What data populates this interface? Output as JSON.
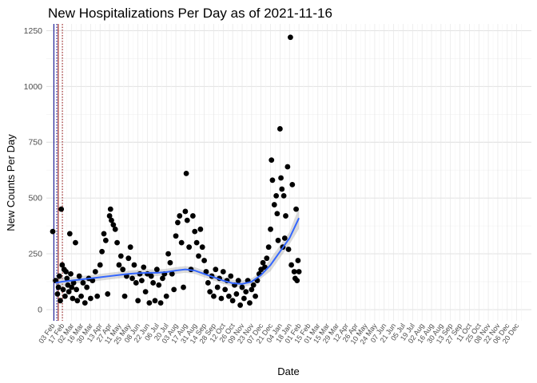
{
  "chart_data": {
    "type": "scatter",
    "title": "New Hospitalizations Per Day as of 2021-11-16",
    "xlabel": "Date",
    "ylabel": "New Counts Per Day",
    "ylim": [
      -50,
      1280
    ],
    "yticks": [
      0,
      250,
      500,
      750,
      1000,
      1250
    ],
    "grid": true,
    "x_tick_labels": [
      "03 Feb",
      "17 Feb",
      "02 Mar",
      "16 Mar",
      "30 Mar",
      "13 Apr",
      "27 Apr",
      "11 May",
      "25 May",
      "08 Jun",
      "22 Jun",
      "06 Jul",
      "20 Jul",
      "03 Aug",
      "17 Aug",
      "31 Aug",
      "14 Sep",
      "28 Sep",
      "12 Oct",
      "26 Oct",
      "09 Nov",
      "23 Nov",
      "07 Dec",
      "21 Dec",
      "04 Jan",
      "18 Jan",
      "01 Feb",
      "15 Feb",
      "01 Mar",
      "15 Mar",
      "29 Mar",
      "12 Apr",
      "26 Apr",
      "10 May",
      "24 May",
      "07 Jun",
      "21 Jun",
      "05 Jul",
      "19 Jul",
      "02 Aug",
      "16 Aug",
      "30 Aug",
      "13 Sep",
      "27 Sep",
      "11 Oct",
      "25 Oct",
      "08 Nov",
      "22 Nov",
      "06 Dec",
      "20 Dec"
    ],
    "reference_lines": [
      {
        "x": 0.12,
        "color": "#00008b",
        "style": "solid"
      },
      {
        "x": 0.42,
        "color": "#00008b",
        "style": "dotted"
      },
      {
        "x": 0.58,
        "color": "#8b0000",
        "style": "solid"
      },
      {
        "x": 1.02,
        "color": "#8b0000",
        "style": "dotted"
      }
    ],
    "series": [
      {
        "type": "scatter",
        "color": "#000000",
        "points": [
          [
            0.0,
            350
          ],
          [
            0.3,
            130
          ],
          [
            0.5,
            70
          ],
          [
            0.6,
            100
          ],
          [
            0.7,
            150
          ],
          [
            0.8,
            40
          ],
          [
            0.9,
            450
          ],
          [
            1.0,
            200
          ],
          [
            1.1,
            90
          ],
          [
            1.2,
            180
          ],
          [
            1.3,
            60
          ],
          [
            1.4,
            170
          ],
          [
            1.5,
            140
          ],
          [
            1.6,
            110
          ],
          [
            1.7,
            80
          ],
          [
            1.8,
            340
          ],
          [
            1.9,
            160
          ],
          [
            2.0,
            100
          ],
          [
            2.1,
            50
          ],
          [
            2.2,
            120
          ],
          [
            2.4,
            300
          ],
          [
            2.5,
            90
          ],
          [
            2.6,
            40
          ],
          [
            2.8,
            150
          ],
          [
            3.0,
            60
          ],
          [
            3.2,
            120
          ],
          [
            3.4,
            30
          ],
          [
            3.6,
            100
          ],
          [
            3.8,
            140
          ],
          [
            4.0,
            50
          ],
          [
            4.2,
            130
          ],
          [
            4.5,
            170
          ],
          [
            4.7,
            60
          ],
          [
            5.0,
            200
          ],
          [
            5.2,
            260
          ],
          [
            5.4,
            340
          ],
          [
            5.6,
            310
          ],
          [
            5.8,
            70
          ],
          [
            6.0,
            420
          ],
          [
            6.1,
            450
          ],
          [
            6.2,
            400
          ],
          [
            6.4,
            380
          ],
          [
            6.6,
            360
          ],
          [
            6.8,
            300
          ],
          [
            7.0,
            200
          ],
          [
            7.2,
            240
          ],
          [
            7.4,
            180
          ],
          [
            7.6,
            60
          ],
          [
            7.8,
            150
          ],
          [
            8.0,
            230
          ],
          [
            8.2,
            280
          ],
          [
            8.4,
            140
          ],
          [
            8.6,
            200
          ],
          [
            8.8,
            120
          ],
          [
            9.0,
            40
          ],
          [
            9.2,
            160
          ],
          [
            9.4,
            130
          ],
          [
            9.6,
            190
          ],
          [
            9.8,
            80
          ],
          [
            10.0,
            160
          ],
          [
            10.2,
            30
          ],
          [
            10.4,
            150
          ],
          [
            10.6,
            120
          ],
          [
            10.8,
            40
          ],
          [
            11.0,
            180
          ],
          [
            11.2,
            110
          ],
          [
            11.4,
            30
          ],
          [
            11.6,
            140
          ],
          [
            11.8,
            160
          ],
          [
            12.0,
            60
          ],
          [
            12.2,
            250
          ],
          [
            12.4,
            210
          ],
          [
            12.6,
            160
          ],
          [
            12.8,
            90
          ],
          [
            13.0,
            330
          ],
          [
            13.2,
            390
          ],
          [
            13.4,
            420
          ],
          [
            13.6,
            300
          ],
          [
            13.8,
            100
          ],
          [
            14.0,
            440
          ],
          [
            14.1,
            610
          ],
          [
            14.2,
            400
          ],
          [
            14.4,
            280
          ],
          [
            14.6,
            180
          ],
          [
            14.8,
            420
          ],
          [
            15.0,
            350
          ],
          [
            15.2,
            300
          ],
          [
            15.4,
            240
          ],
          [
            15.6,
            360
          ],
          [
            15.8,
            280
          ],
          [
            16.0,
            220
          ],
          [
            16.2,
            170
          ],
          [
            16.4,
            120
          ],
          [
            16.6,
            80
          ],
          [
            16.8,
            150
          ],
          [
            17.0,
            60
          ],
          [
            17.2,
            180
          ],
          [
            17.4,
            100
          ],
          [
            17.6,
            140
          ],
          [
            17.8,
            50
          ],
          [
            18.0,
            170
          ],
          [
            18.2,
            90
          ],
          [
            18.4,
            130
          ],
          [
            18.6,
            60
          ],
          [
            18.8,
            150
          ],
          [
            19.0,
            40
          ],
          [
            19.2,
            110
          ],
          [
            19.4,
            70
          ],
          [
            19.6,
            130
          ],
          [
            19.8,
            20
          ],
          [
            20.0,
            100
          ],
          [
            20.2,
            50
          ],
          [
            20.4,
            80
          ],
          [
            20.6,
            130
          ],
          [
            20.8,
            30
          ],
          [
            21.0,
            90
          ],
          [
            21.2,
            110
          ],
          [
            21.4,
            60
          ],
          [
            21.6,
            130
          ],
          [
            21.8,
            160
          ],
          [
            22.0,
            180
          ],
          [
            22.2,
            210
          ],
          [
            22.4,
            190
          ],
          [
            22.6,
            230
          ],
          [
            22.8,
            280
          ],
          [
            23.0,
            360
          ],
          [
            23.1,
            670
          ],
          [
            23.2,
            580
          ],
          [
            23.4,
            470
          ],
          [
            23.6,
            510
          ],
          [
            23.7,
            430
          ],
          [
            23.8,
            310
          ],
          [
            24.0,
            810
          ],
          [
            24.1,
            590
          ],
          [
            24.2,
            540
          ],
          [
            24.3,
            280
          ],
          [
            24.4,
            510
          ],
          [
            24.5,
            320
          ],
          [
            24.6,
            420
          ],
          [
            24.8,
            640
          ],
          [
            24.9,
            270
          ],
          [
            25.1,
            1220
          ],
          [
            25.2,
            200
          ],
          [
            25.3,
            560
          ],
          [
            25.5,
            170
          ],
          [
            25.6,
            140
          ],
          [
            25.7,
            450
          ],
          [
            25.8,
            130
          ],
          [
            25.9,
            220
          ],
          [
            26.0,
            170
          ]
        ]
      },
      {
        "type": "smooth_line",
        "color": "#3366ff",
        "points": [
          [
            0.3,
            120
          ],
          [
            1.0,
            125
          ],
          [
            2.0,
            130
          ],
          [
            3.0,
            135
          ],
          [
            4.0,
            140
          ],
          [
            5.0,
            145
          ],
          [
            6.0,
            150
          ],
          [
            7.0,
            155
          ],
          [
            8.0,
            160
          ],
          [
            9.0,
            163
          ],
          [
            10.0,
            165
          ],
          [
            11.0,
            165
          ],
          [
            12.0,
            168
          ],
          [
            13.0,
            175
          ],
          [
            14.0,
            180
          ],
          [
            15.0,
            175
          ],
          [
            16.0,
            160
          ],
          [
            17.0,
            145
          ],
          [
            18.0,
            130
          ],
          [
            19.0,
            118
          ],
          [
            20.0,
            115
          ],
          [
            21.0,
            125
          ],
          [
            22.0,
            155
          ],
          [
            23.0,
            200
          ],
          [
            24.0,
            260
          ],
          [
            25.0,
            320
          ],
          [
            26.0,
            410
          ]
        ]
      }
    ]
  }
}
